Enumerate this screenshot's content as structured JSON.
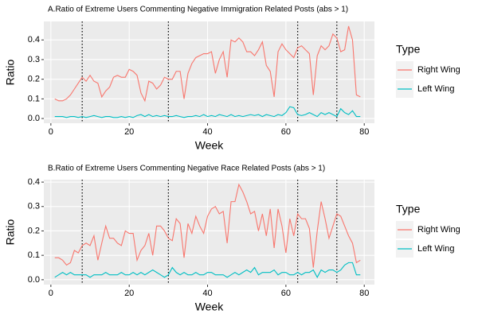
{
  "chart_data": [
    {
      "type": "line",
      "title": "A.Ratio of Extreme Users Commenting Negative Immigration Related Posts (abs > 1)",
      "x_label": "Week",
      "y_label": "Ratio",
      "legend_title": "Type",
      "legend": "right",
      "grid": true,
      "x": [
        1,
        2,
        3,
        4,
        5,
        6,
        7,
        8,
        9,
        10,
        11,
        12,
        13,
        14,
        15,
        16,
        17,
        18,
        19,
        20,
        21,
        22,
        23,
        24,
        25,
        26,
        27,
        28,
        29,
        30,
        31,
        32,
        33,
        34,
        35,
        36,
        37,
        38,
        39,
        40,
        41,
        42,
        43,
        44,
        45,
        46,
        47,
        48,
        49,
        50,
        51,
        52,
        53,
        54,
        55,
        56,
        57,
        58,
        59,
        60,
        61,
        62,
        63,
        64,
        65,
        66,
        67,
        68,
        69,
        70,
        71,
        72,
        73,
        74,
        75,
        76,
        77,
        78,
        79
      ],
      "series": [
        {
          "name": "Right Wing",
          "color": "#F8766D",
          "values": [
            0.1,
            0.09,
            0.09,
            0.1,
            0.12,
            0.15,
            0.18,
            0.21,
            0.19,
            0.22,
            0.19,
            0.18,
            0.11,
            0.14,
            0.16,
            0.21,
            0.22,
            0.21,
            0.21,
            0.25,
            0.24,
            0.22,
            0.13,
            0.09,
            0.19,
            0.18,
            0.15,
            0.17,
            0.21,
            0.2,
            0.2,
            0.24,
            0.24,
            0.1,
            0.23,
            0.28,
            0.31,
            0.32,
            0.33,
            0.33,
            0.34,
            0.23,
            0.3,
            0.34,
            0.21,
            0.4,
            0.39,
            0.41,
            0.39,
            0.34,
            0.34,
            0.32,
            0.35,
            0.39,
            0.27,
            0.24,
            0.11,
            0.34,
            0.38,
            0.35,
            0.33,
            0.31,
            0.36,
            0.37,
            0.35,
            0.33,
            0.12,
            0.32,
            0.37,
            0.35,
            0.37,
            0.43,
            0.41,
            0.34,
            0.35,
            0.47,
            0.4,
            0.12,
            0.11
          ]
        },
        {
          "name": "Left Wing",
          "color": "#00BFC4",
          "values": [
            0.01,
            0.01,
            0.01,
            0.005,
            0.01,
            0.01,
            0.005,
            0.01,
            0.005,
            0.01,
            0.015,
            0.01,
            0.005,
            0.01,
            0.01,
            0.005,
            0.005,
            0.01,
            0.005,
            0.01,
            0.005,
            0.015,
            0.02,
            0.01,
            0.02,
            0.01,
            0.015,
            0.01,
            0.015,
            0.01,
            0.01,
            0.015,
            0.01,
            0.005,
            0.01,
            0.01,
            0.015,
            0.01,
            0.02,
            0.01,
            0.015,
            0.01,
            0.02,
            0.015,
            0.01,
            0.02,
            0.01,
            0.015,
            0.01,
            0.015,
            0.02,
            0.015,
            0.02,
            0.01,
            0.02,
            0.015,
            0.01,
            0.02,
            0.015,
            0.03,
            0.06,
            0.055,
            0.02,
            0.015,
            0.02,
            0.03,
            0.02,
            0.01,
            0.03,
            0.02,
            0.03,
            0.02,
            0.01,
            0.05,
            0.03,
            0.02,
            0.04,
            0.01,
            0.01
          ]
        }
      ],
      "xlim": [
        -1.8,
        82.6
      ],
      "xticks": [
        0,
        20,
        40,
        60,
        80
      ],
      "ylim": [
        -0.024,
        0.494
      ],
      "yticks": [
        {
          "value": 0,
          "label": "0.0"
        },
        {
          "value": 0.1,
          "label": "0.1"
        },
        {
          "value": 0.2,
          "label": "0.2"
        },
        {
          "value": 0.3,
          "label": "0.3"
        },
        {
          "value": 0.4,
          "label": "0.4"
        }
      ],
      "vlines": [
        8,
        30,
        63,
        73
      ]
    },
    {
      "type": "line",
      "title": "B.Ratio of Extreme Users Commenting Negative Race Related Posts (abs > 1)",
      "x_label": "Week",
      "y_label": "Ratio",
      "legend_title": "Type",
      "legend": "right",
      "grid": true,
      "x": [
        1,
        2,
        3,
        4,
        5,
        6,
        7,
        8,
        9,
        10,
        11,
        12,
        13,
        14,
        15,
        16,
        17,
        18,
        19,
        20,
        21,
        22,
        23,
        24,
        25,
        26,
        27,
        28,
        29,
        30,
        31,
        32,
        33,
        34,
        35,
        36,
        37,
        38,
        39,
        40,
        41,
        42,
        43,
        44,
        45,
        46,
        47,
        48,
        49,
        50,
        51,
        52,
        53,
        54,
        55,
        56,
        57,
        58,
        59,
        60,
        61,
        62,
        63,
        64,
        65,
        66,
        67,
        68,
        69,
        70,
        71,
        72,
        73,
        74,
        75,
        76,
        77,
        78,
        79
      ],
      "series": [
        {
          "name": "Right Wing",
          "color": "#F8766D",
          "values": [
            0.09,
            0.09,
            0.08,
            0.06,
            0.07,
            0.12,
            0.11,
            0.14,
            0.15,
            0.14,
            0.18,
            0.08,
            0.15,
            0.22,
            0.17,
            0.17,
            0.15,
            0.14,
            0.2,
            0.19,
            0.19,
            0.08,
            0.12,
            0.14,
            0.19,
            0.1,
            0.22,
            0.22,
            0.2,
            0.17,
            0.16,
            0.25,
            0.23,
            0.09,
            0.23,
            0.19,
            0.26,
            0.22,
            0.19,
            0.26,
            0.29,
            0.3,
            0.27,
            0.28,
            0.15,
            0.32,
            0.32,
            0.39,
            0.36,
            0.32,
            0.27,
            0.28,
            0.2,
            0.27,
            0.18,
            0.29,
            0.13,
            0.29,
            0.22,
            0.11,
            0.25,
            0.18,
            0.27,
            0.25,
            0.25,
            0.21,
            0.05,
            0.2,
            0.32,
            0.25,
            0.17,
            0.22,
            0.27,
            0.26,
            0.22,
            0.18,
            0.15,
            0.07,
            0.08
          ]
        },
        {
          "name": "Left Wing",
          "color": "#00BFC4",
          "values": [
            0.01,
            0.02,
            0.03,
            0.02,
            0.03,
            0.02,
            0.02,
            0.02,
            0.02,
            0.01,
            0.02,
            0.02,
            0.02,
            0.03,
            0.02,
            0.02,
            0.02,
            0.03,
            0.02,
            0.02,
            0.03,
            0.02,
            0.03,
            0.02,
            0.03,
            0.04,
            0.03,
            0.02,
            0.01,
            0.02,
            0.05,
            0.03,
            0.02,
            0.03,
            0.02,
            0.02,
            0.03,
            0.02,
            0.02,
            0.03,
            0.03,
            0.02,
            0.02,
            0.02,
            0.01,
            0.02,
            0.03,
            0.02,
            0.03,
            0.04,
            0.03,
            0.05,
            0.02,
            0.03,
            0.03,
            0.03,
            0.04,
            0.02,
            0.03,
            0.03,
            0.02,
            0.02,
            0.03,
            0.02,
            0.03,
            0.03,
            0.04,
            0.01,
            0.04,
            0.03,
            0.04,
            0.04,
            0.03,
            0.04,
            0.06,
            0.07,
            0.07,
            0.02,
            0.02
          ]
        }
      ],
      "xlim": [
        -1.8,
        82.6
      ],
      "xticks": [
        0,
        20,
        40,
        60,
        80
      ],
      "ylim": [
        -0.02,
        0.41
      ],
      "yticks": [
        {
          "value": 0,
          "label": "0.0"
        },
        {
          "value": 0.1,
          "label": "0.1"
        },
        {
          "value": 0.2,
          "label": "0.2"
        },
        {
          "value": 0.3,
          "label": "0.3"
        },
        {
          "value": 0.4,
          "label": "0.4"
        }
      ],
      "vlines": [
        8,
        30,
        63,
        73
      ]
    }
  ]
}
